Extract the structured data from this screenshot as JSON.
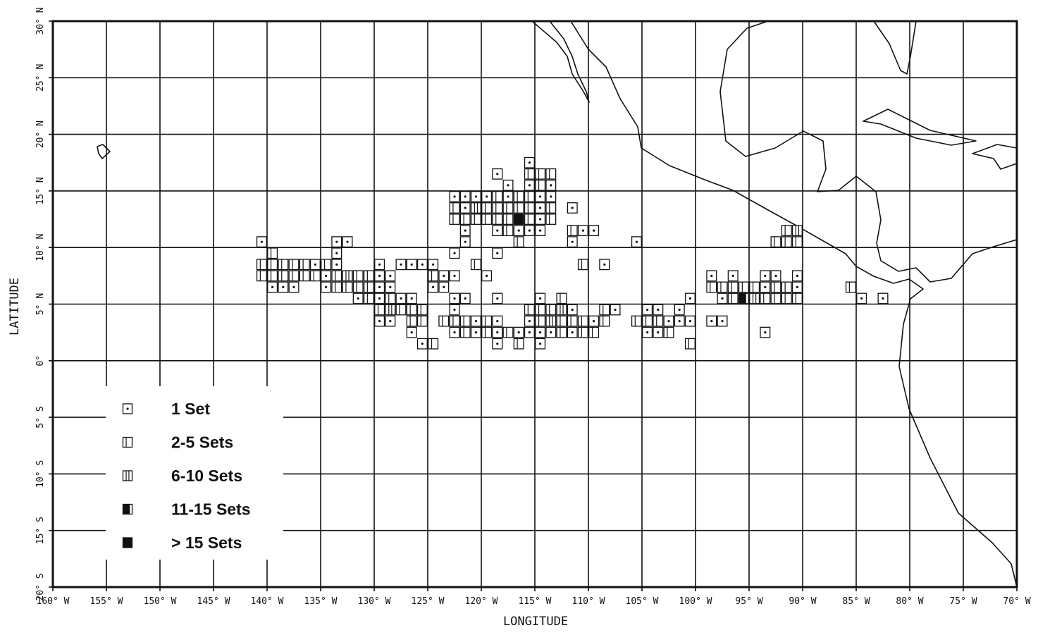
{
  "map": {
    "x_axis_label": "LONGITUDE",
    "y_axis_label": "LATITUDE",
    "lon_ticks": [
      {
        "value": 160,
        "label": "160° W"
      },
      {
        "value": 155,
        "label": "155° W"
      },
      {
        "value": 150,
        "label": "150° W"
      },
      {
        "value": 145,
        "label": "145° W"
      },
      {
        "value": 140,
        "label": "140° W"
      },
      {
        "value": 135,
        "label": "135° W"
      },
      {
        "value": 130,
        "label": "130° W"
      },
      {
        "value": 125,
        "label": "125° W"
      },
      {
        "value": 120,
        "label": "120° W"
      },
      {
        "value": 115,
        "label": "115° W"
      },
      {
        "value": 110,
        "label": "110° W"
      },
      {
        "value": 105,
        "label": "105° W"
      },
      {
        "value": 100,
        "label": "100° W"
      },
      {
        "value": 95,
        "label": "95° W"
      },
      {
        "value": 90,
        "label": "90° W"
      },
      {
        "value": 85,
        "label": "85° W"
      },
      {
        "value": 80,
        "label": "80° W"
      },
      {
        "value": 75,
        "label": "75° W"
      },
      {
        "value": 70,
        "label": "70° W"
      }
    ],
    "lat_ticks": [
      {
        "value": 30,
        "label": "30° N"
      },
      {
        "value": 25,
        "label": "25° N"
      },
      {
        "value": 20,
        "label": "20° N"
      },
      {
        "value": 15,
        "label": "15° N"
      },
      {
        "value": 10,
        "label": "10° N"
      },
      {
        "value": 5,
        "label": "5° N"
      },
      {
        "value": 0,
        "label": "0°"
      },
      {
        "value": -5,
        "label": "5° S"
      },
      {
        "value": -10,
        "label": "10° S"
      },
      {
        "value": -15,
        "label": "15° S"
      },
      {
        "value": -20,
        "label": "20° S"
      }
    ],
    "legend": [
      "1 Set",
      "2-5 Sets",
      "6-10 Sets",
      "11-15 Sets",
      "> 15 Sets"
    ],
    "cells": [
      {
        "lat": 17.5,
        "lon": [
          115.5
        ],
        "level": [
          1
        ]
      },
      {
        "lat": 16.5,
        "lon": [
          118.5,
          115.5,
          114.5,
          113.5
        ],
        "level": [
          1,
          2,
          2,
          2
        ]
      },
      {
        "lat": 15.5,
        "lon": [
          117.5,
          115.5,
          114.5,
          113.5
        ],
        "level": [
          1,
          1,
          2,
          1
        ]
      },
      {
        "lat": 14.5,
        "lon": [
          122.5,
          121.5,
          120.5,
          119.5,
          118.5,
          117.5,
          116.5,
          115.5,
          114.5,
          113.5
        ],
        "level": [
          1,
          1,
          1,
          1,
          2,
          1,
          2,
          2,
          1,
          1
        ]
      },
      {
        "lat": 13.5,
        "lon": [
          122.5,
          121.5,
          120.5,
          119.5,
          118.5,
          117.5,
          116.5,
          115.5,
          114.5,
          113.5,
          111.5
        ],
        "level": [
          2,
          1,
          3,
          2,
          2,
          2,
          2,
          2,
          1,
          2,
          1
        ]
      },
      {
        "lat": 12.5,
        "lon": [
          122.5,
          121.5,
          120.5,
          119.5,
          118.5,
          117.5,
          116.5,
          115.5,
          114.5,
          113.5
        ],
        "level": [
          2,
          2,
          2,
          2,
          2,
          2,
          5,
          2,
          1,
          2
        ]
      },
      {
        "lat": 11.5,
        "lon": [
          121.5,
          118.5,
          117.5,
          116.5,
          115.5,
          114.5,
          111.5,
          110.5,
          109.5,
          91.5,
          90.5
        ],
        "level": [
          1,
          1,
          2,
          1,
          1,
          1,
          2,
          1,
          1,
          2,
          3
        ]
      },
      {
        "lat": 10.5,
        "lon": [
          140.5,
          133.5,
          132.5,
          121.5,
          116.5,
          111.5,
          105.5,
          92.5,
          91.5,
          90.5
        ],
        "level": [
          1,
          1,
          1,
          1,
          2,
          1,
          1,
          2,
          2,
          2
        ]
      },
      {
        "lat": 9.5,
        "lon": [
          139.5,
          133.5,
          122.5,
          118.5
        ],
        "level": [
          2,
          1,
          1,
          1
        ]
      },
      {
        "lat": 8.5,
        "lon": [
          140.5,
          139.5,
          138.5,
          137.5,
          136.5,
          135.5,
          134.5,
          133.5,
          129.5,
          127.5,
          126.5,
          125.5,
          124.5,
          120.5,
          110.5,
          108.5
        ],
        "level": [
          2,
          2,
          2,
          2,
          2,
          1,
          2,
          1,
          1,
          1,
          1,
          1,
          1,
          2,
          2,
          1
        ]
      },
      {
        "lat": 7.5,
        "lon": [
          140.5,
          139.5,
          138.5,
          137.5,
          136.5,
          135.5,
          134.5,
          133.5,
          132.5,
          131.5,
          130.5,
          129.5,
          128.5,
          124.5,
          123.5,
          122.5,
          119.5,
          98.5,
          96.5,
          93.5,
          92.5,
          90.5
        ],
        "level": [
          2,
          2,
          2,
          2,
          2,
          2,
          1,
          2,
          3,
          2,
          2,
          1,
          1,
          2,
          1,
          1,
          1,
          1,
          1,
          1,
          1,
          1
        ]
      },
      {
        "lat": 6.5,
        "lon": [
          139.5,
          138.5,
          137.5,
          134.5,
          133.5,
          132.5,
          131.5,
          130.5,
          129.5,
          128.5,
          124.5,
          123.5,
          98.5,
          97.5,
          96.5,
          95.5,
          94.5,
          93.5,
          92.5,
          91.5,
          90.5,
          85.5
        ],
        "level": [
          1,
          1,
          1,
          1,
          2,
          2,
          2,
          2,
          1,
          1,
          1,
          1,
          2,
          2,
          2,
          2,
          2,
          1,
          2,
          2,
          1,
          2
        ]
      },
      {
        "lat": 5.5,
        "lon": [
          131.5,
          130.5,
          129.5,
          128.5,
          127.5,
          126.5,
          122.5,
          121.5,
          118.5,
          114.5,
          112.5,
          100.5,
          97.5,
          96.5,
          95.5,
          94.5,
          93.5,
          92.5,
          91.5,
          90.5,
          84.5,
          82.5
        ],
        "level": [
          1,
          2,
          1,
          2,
          1,
          1,
          1,
          1,
          1,
          1,
          2,
          1,
          1,
          2,
          4,
          3,
          2,
          2,
          2,
          2,
          1,
          1
        ]
      },
      {
        "lat": 4.5,
        "lon": [
          129.5,
          128.5,
          127.5,
          126.5,
          125.5,
          122.5,
          115.5,
          114.5,
          113.5,
          112.5,
          111.5,
          108.5,
          107.5,
          104.5,
          103.5,
          101.5
        ],
        "level": [
          2,
          3,
          2,
          2,
          2,
          1,
          2,
          2,
          2,
          3,
          1,
          2,
          1,
          1,
          1,
          1
        ]
      },
      {
        "lat": 3.5,
        "lon": [
          129.5,
          128.5,
          126.5,
          125.5,
          123.5,
          122.5,
          121.5,
          120.5,
          119.5,
          118.5,
          115.5,
          114.5,
          113.5,
          112.5,
          111.5,
          110.5,
          109.5,
          108.5,
          105.5,
          104.5,
          103.5,
          102.5,
          101.5,
          100.5,
          98.5,
          97.5
        ],
        "level": [
          1,
          1,
          2,
          2,
          2,
          2,
          2,
          1,
          2,
          1,
          1,
          2,
          3,
          2,
          2,
          2,
          1,
          2,
          2,
          2,
          2,
          1,
          1,
          1,
          1,
          1
        ]
      },
      {
        "lat": 2.5,
        "lon": [
          126.5,
          122.5,
          121.5,
          120.5,
          119.5,
          118.5,
          117.5,
          116.5,
          115.5,
          114.5,
          113.5,
          112.5,
          111.5,
          110.5,
          109.5,
          104.5,
          103.5,
          102.5,
          93.5
        ],
        "level": [
          1,
          1,
          2,
          1,
          2,
          1,
          2,
          1,
          1,
          1,
          1,
          2,
          1,
          2,
          2,
          1,
          1,
          2,
          1
        ]
      },
      {
        "lat": 1.5,
        "lon": [
          125.5,
          124.5,
          118.5,
          116.5,
          114.5,
          100.5
        ],
        "level": [
          1,
          2,
          1,
          2,
          1,
          2
        ]
      }
    ]
  }
}
